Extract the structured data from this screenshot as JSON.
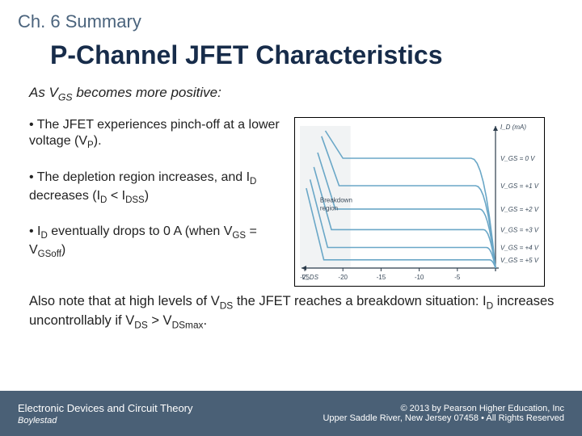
{
  "chapter": "Ch. 6 Summary",
  "title": "P-Channel JFET Characteristics",
  "lead_html": "As V<sub>GS</sub> becomes more positive:",
  "bullets": [
    "• The JFET experiences pinch-off at a lower voltage (V<sub>P</sub>).",
    "• The depletion region increases, and I<sub>D</sub> decreases (I<sub>D</sub> &lt; I<sub>DSS</sub>)",
    "• I<sub>D</sub> eventually drops to 0 A (when V<sub>GS</sub> = V<sub>GSoff</sub>)"
  ],
  "also_html": "Also note that at high levels of V<sub>DS</sub> the JFET reaches a breakdown situation:  I<sub>D</sub> increases uncontrollably if V<sub>DS</sub> &gt; V<sub>DSmax</sub>.",
  "footer": {
    "left1": "Electronic Devices and Circuit Theory",
    "left2": "Boylestad",
    "right1": "© 2013 by Pearson Higher Education, Inc",
    "right2": "Upper Saddle River, New Jersey 07458 • All Rights Reserved"
  },
  "chart": {
    "type": "line",
    "x_axis_label": "V_DS",
    "y_axis_label": "I_D (mA)",
    "xlim": [
      -25,
      0
    ],
    "ylim": [
      0,
      10
    ],
    "x_ticks": [
      -5,
      -10,
      -15,
      -20,
      -25
    ],
    "y_ticks": [
      2,
      4,
      6,
      8,
      10
    ],
    "curve_color": "#6aa7c7",
    "axis_color": "#2b3b4a",
    "grid_color": "#d9d9d9",
    "breakdown_fill": "#d8dcdf",
    "text_color": "#3a4a5a",
    "label_fontsize": 8,
    "curves": [
      {
        "vgs_label": "V_GS = 0 V",
        "plateau_id": -8.0,
        "knee_x": -3.2,
        "break_x": -20
      },
      {
        "vgs_label": "V_GS = +1 V",
        "plateau_id": -6.0,
        "knee_x": -2.6,
        "break_x": -20.5
      },
      {
        "vgs_label": "V_GS = +2 V",
        "plateau_id": -4.3,
        "knee_x": -2.1,
        "break_x": -21
      },
      {
        "vgs_label": "V_GS = +3 V",
        "plateau_id": -2.8,
        "knee_x": -1.6,
        "break_x": -21.5
      },
      {
        "vgs_label": "V_GS = +4 V",
        "plateau_id": -1.5,
        "knee_x": -1.2,
        "break_x": -22
      },
      {
        "vgs_label": "V_GS = +5 V",
        "plateau_id": -0.6,
        "knee_x": -0.8,
        "break_x": -22.5
      }
    ],
    "breakdown_label": "Breakdown region"
  }
}
